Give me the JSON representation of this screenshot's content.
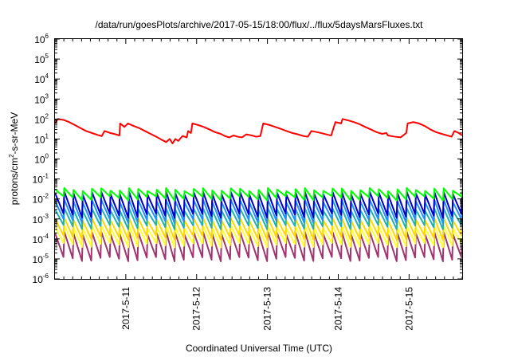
{
  "chart_data": {
    "type": "line",
    "title": "/data/run/goesPlots/archive/2017-05-15/18:00/flux/../flux/5daysMarsFluxes.txt",
    "xlabel": "Coordinated Universal Time (UTC)",
    "ylabel": "protons/cm2-s-sr-MeV",
    "ylabel_base": "protons/cm",
    "ylabel_sup": "2",
    "ylabel_rest": "-s-sr-MeV",
    "y_scale": "log",
    "ylim_exponents": [
      -6,
      6
    ],
    "y_tick_base": "10",
    "y_tick_exponents": [
      "-6",
      "-5",
      "-4",
      "-3",
      "-2",
      "-1",
      "0",
      "1",
      "2",
      "3",
      "4",
      "5",
      "6"
    ],
    "x_unit": "days",
    "x_range": [
      "2017-05-10 00:00",
      "2017-05-15 18:00"
    ],
    "x_ticks": [
      {
        "label": "2017-5-11",
        "day": 1
      },
      {
        "label": "2017-5-12",
        "day": 2
      },
      {
        "label": "2017-5-13",
        "day": 3
      },
      {
        "label": "2017-5-14",
        "day": 4
      },
      {
        "label": "2017-5-15",
        "day": 5
      }
    ],
    "grid": false,
    "legend": "none",
    "series": [
      {
        "color": "#ff0000",
        "points": [
          [
            0.0,
            60
          ],
          [
            0.04,
            100
          ],
          [
            0.12,
            90
          ],
          [
            0.2,
            70
          ],
          [
            0.28,
            50
          ],
          [
            0.36,
            35
          ],
          [
            0.44,
            25
          ],
          [
            0.52,
            20
          ],
          [
            0.6,
            16
          ],
          [
            0.66,
            14
          ],
          [
            0.7,
            25
          ],
          [
            0.78,
            20
          ],
          [
            0.86,
            17
          ],
          [
            0.91,
            15
          ],
          [
            0.92,
            60
          ],
          [
            0.98,
            40
          ],
          [
            1.03,
            60
          ],
          [
            1.11,
            45
          ],
          [
            1.19,
            35
          ],
          [
            1.27,
            25
          ],
          [
            1.35,
            18
          ],
          [
            1.43,
            13
          ],
          [
            1.51,
            9
          ],
          [
            1.57,
            7
          ],
          [
            1.62,
            10
          ],
          [
            1.66,
            6
          ],
          [
            1.7,
            10
          ],
          [
            1.74,
            8
          ],
          [
            1.8,
            14
          ],
          [
            1.86,
            12
          ],
          [
            1.88,
            25
          ],
          [
            1.92,
            20
          ],
          [
            1.94,
            60
          ],
          [
            2.02,
            50
          ],
          [
            2.1,
            40
          ],
          [
            2.18,
            30
          ],
          [
            2.26,
            22
          ],
          [
            2.34,
            18
          ],
          [
            2.4,
            14
          ],
          [
            2.46,
            12
          ],
          [
            2.52,
            15
          ],
          [
            2.58,
            13
          ],
          [
            2.64,
            12
          ],
          [
            2.7,
            17
          ],
          [
            2.78,
            15
          ],
          [
            2.84,
            13
          ],
          [
            2.9,
            14
          ],
          [
            2.94,
            60
          ],
          [
            3.03,
            50
          ],
          [
            3.11,
            40
          ],
          [
            3.19,
            32
          ],
          [
            3.27,
            25
          ],
          [
            3.35,
            20
          ],
          [
            3.43,
            17
          ],
          [
            3.51,
            14
          ],
          [
            3.57,
            13
          ],
          [
            3.62,
            25
          ],
          [
            3.7,
            22
          ],
          [
            3.78,
            19
          ],
          [
            3.86,
            16
          ],
          [
            3.9,
            15
          ],
          [
            3.96,
            70
          ],
          [
            4.04,
            60
          ],
          [
            4.06,
            100
          ],
          [
            4.14,
            85
          ],
          [
            4.22,
            70
          ],
          [
            4.3,
            55
          ],
          [
            4.38,
            40
          ],
          [
            4.46,
            30
          ],
          [
            4.54,
            22
          ],
          [
            4.62,
            18
          ],
          [
            4.68,
            20
          ],
          [
            4.7,
            15
          ],
          [
            4.8,
            13
          ],
          [
            4.88,
            12
          ],
          [
            4.96,
            20
          ],
          [
            4.98,
            60
          ],
          [
            5.06,
            70
          ],
          [
            5.14,
            60
          ],
          [
            5.22,
            45
          ],
          [
            5.3,
            30
          ],
          [
            5.38,
            22
          ],
          [
            5.46,
            18
          ],
          [
            5.54,
            15
          ],
          [
            5.6,
            13
          ],
          [
            5.64,
            25
          ],
          [
            5.7,
            20
          ],
          [
            5.75,
            15
          ]
        ]
      },
      {
        "color": "#00ff00",
        "pattern": "sawtooth",
        "teeth": 44,
        "peak": 0.03,
        "trough": 0.011
      },
      {
        "color": "#0000cc",
        "pattern": "sawtooth",
        "teeth": 44,
        "peak": 0.02,
        "trough": 0.0015
      },
      {
        "color": "#1e90ff",
        "pattern": "sawtooth",
        "teeth": 44,
        "peak": 0.008,
        "trough": 0.0008
      },
      {
        "color": "#20b2aa",
        "pattern": "sawtooth",
        "teeth": 44,
        "peak": 0.003,
        "trough": 0.0004
      },
      {
        "color": "#ffd700",
        "pattern": "sawtooth",
        "teeth": 44,
        "peak": 0.001,
        "trough": 0.00012
      },
      {
        "color": "#ffff33",
        "pattern": "sawtooth",
        "teeth": 44,
        "peak": 0.0004,
        "trough": 5e-05
      },
      {
        "color": "#a0346e",
        "pattern": "sawtooth",
        "teeth": 44,
        "peak": 0.0002,
        "trough": 1e-05
      }
    ]
  }
}
